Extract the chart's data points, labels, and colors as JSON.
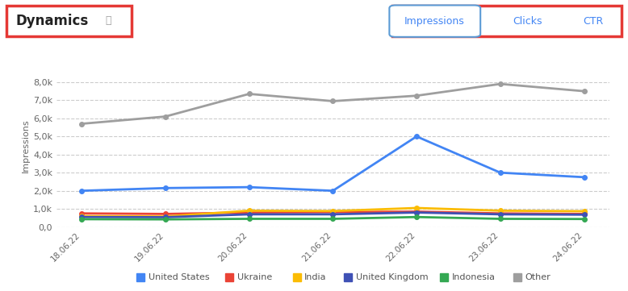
{
  "x_labels": [
    "18.06.22",
    "19.06.22",
    "20.06.22",
    "21.06.22",
    "22.06.22",
    "23.06.22",
    "24.06.22"
  ],
  "series": {
    "United States": {
      "color": "#4285F4",
      "values": [
        2000,
        2150,
        2200,
        2000,
        5000,
        3000,
        2750
      ]
    },
    "Ukraine": {
      "color": "#EA4335",
      "values": [
        750,
        720,
        800,
        820,
        850,
        750,
        720
      ]
    },
    "India": {
      "color": "#FBBC04",
      "values": [
        600,
        580,
        900,
        880,
        1050,
        900,
        870
      ]
    },
    "United Kingdom": {
      "color": "#3F51B5",
      "values": [
        550,
        540,
        700,
        700,
        800,
        700,
        680
      ]
    },
    "Indonesia": {
      "color": "#34A853",
      "values": [
        430,
        420,
        450,
        450,
        550,
        450,
        440
      ]
    },
    "Other": {
      "color": "#9E9E9E",
      "values": [
        5700,
        6100,
        7350,
        6950,
        7250,
        7900,
        7500
      ]
    }
  },
  "ylabel": "Impressions",
  "ylim": [
    0,
    9000
  ],
  "yticks": [
    0,
    1000,
    2000,
    3000,
    4000,
    5000,
    6000,
    7000,
    8000
  ],
  "ytick_labels": [
    "0,0",
    "1,0k",
    "2,0k",
    "3,0k",
    "4,0k",
    "5,0k",
    "6,0k",
    "7,0k",
    "8,0k"
  ],
  "title": "Dynamics",
  "button_labels": [
    "Impressions",
    "Clicks",
    "CTR"
  ],
  "active_button": "Impressions",
  "marker_size": 4,
  "line_width": 2.0,
  "bg_color": "#FFFFFF",
  "grid_color": "#CCCCCC",
  "title_box_color": "#E53935",
  "button_box_color": "#E53935",
  "active_button_box_color": "#5B9BD5",
  "legend_order": [
    "United States",
    "Ukraine",
    "India",
    "United Kingdom",
    "Indonesia",
    "Other"
  ]
}
